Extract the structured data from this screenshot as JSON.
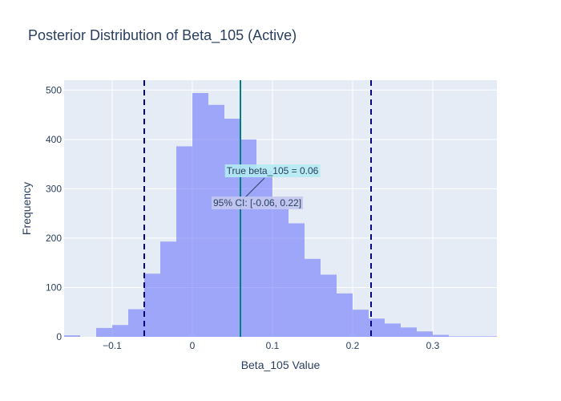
{
  "chart_data": {
    "type": "bar",
    "title": "Posterior Distribution of Beta_105 (Active)",
    "xlabel": "Beta_105 Value",
    "ylabel": "Frequency",
    "xlim": [
      -0.16,
      0.38
    ],
    "ylim": [
      0,
      520
    ],
    "bin_width": 0.02,
    "xticks": [
      -0.1,
      0,
      0.1,
      0.2,
      0.3
    ],
    "xtick_labels": [
      "−0.1",
      "0",
      "0.1",
      "0.2",
      "0.3"
    ],
    "yticks": [
      0,
      100,
      200,
      300,
      400,
      500
    ],
    "ytick_labels": [
      "0",
      "100",
      "200",
      "300",
      "400",
      "500"
    ],
    "bins": [
      {
        "x0": -0.16,
        "count": 3
      },
      {
        "x0": -0.12,
        "count": 18
      },
      {
        "x0": -0.1,
        "count": 24
      },
      {
        "x0": -0.08,
        "count": 56
      },
      {
        "x0": -0.06,
        "count": 128
      },
      {
        "x0": -0.04,
        "count": 193
      },
      {
        "x0": -0.02,
        "count": 386
      },
      {
        "x0": 0.0,
        "count": 494
      },
      {
        "x0": 0.02,
        "count": 470
      },
      {
        "x0": 0.04,
        "count": 442
      },
      {
        "x0": 0.06,
        "count": 400
      },
      {
        "x0": 0.08,
        "count": 337
      },
      {
        "x0": 0.1,
        "count": 279
      },
      {
        "x0": 0.12,
        "count": 230
      },
      {
        "x0": 0.14,
        "count": 158
      },
      {
        "x0": 0.16,
        "count": 126
      },
      {
        "x0": 0.18,
        "count": 88
      },
      {
        "x0": 0.2,
        "count": 55
      },
      {
        "x0": 0.22,
        "count": 37
      },
      {
        "x0": 0.24,
        "count": 27
      },
      {
        "x0": 0.26,
        "count": 19
      },
      {
        "x0": 0.28,
        "count": 11
      },
      {
        "x0": 0.3,
        "count": 4
      },
      {
        "x0": 0.32,
        "count": 1
      },
      {
        "x0": 0.34,
        "count": 1
      },
      {
        "x0": 0.36,
        "count": 1
      }
    ],
    "true_value_line": {
      "x": 0.06
    },
    "ci_lines": {
      "lower": -0.06,
      "upper": 0.223
    },
    "annotations": {
      "true_label": "True beta_105 = 0.06",
      "ci_label": "95% CI: [-0.06, 0.22]"
    },
    "grid": true,
    "colors": {
      "bar": "#636efa",
      "plot_bg": "#e5ecf6",
      "grid": "#ffffff",
      "true_line": "#008080",
      "ci_line": "#00008b",
      "true_label_bg": "#b3ebf2",
      "ci_label_bg": "#c3c8ee",
      "text": "#2a3f5f"
    }
  }
}
